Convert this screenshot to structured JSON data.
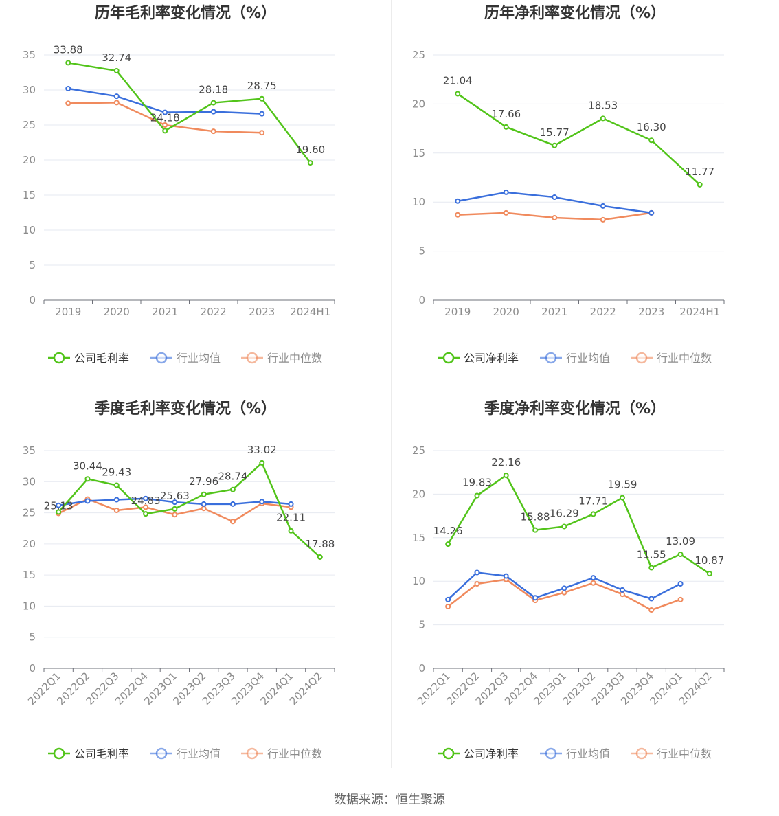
{
  "source": "数据来源：恒生聚源",
  "chart_data": [
    {
      "type": "line",
      "title": "历年毛利率变化情况（%）",
      "categories": [
        "2019",
        "2020",
        "2021",
        "2022",
        "2023",
        "2024H1"
      ],
      "ylim": [
        0,
        35
      ],
      "yticks": [
        0,
        5,
        10,
        15,
        20,
        25,
        30,
        35
      ],
      "rotate_x_labels": false,
      "grid": true,
      "legend_position": "bottom-center",
      "series": [
        {
          "name": "公司毛利率",
          "color": "#52c41a",
          "labels": true,
          "values": [
            33.88,
            32.74,
            24.18,
            28.18,
            28.75,
            19.6
          ],
          "value_labels": [
            "33.88",
            "32.74",
            "24.18",
            "28.18",
            "28.75",
            "19.60"
          ]
        },
        {
          "name": "行业均值",
          "color": "#3a6fdc",
          "labels": false,
          "values": [
            30.2,
            29.1,
            26.8,
            26.9,
            26.6,
            null
          ]
        },
        {
          "name": "行业中位数",
          "color": "#f08a5d",
          "labels": false,
          "values": [
            28.1,
            28.2,
            25.0,
            24.1,
            23.9,
            null
          ]
        }
      ]
    },
    {
      "type": "line",
      "title": "历年净利率变化情况（%）",
      "categories": [
        "2019",
        "2020",
        "2021",
        "2022",
        "2023",
        "2024H1"
      ],
      "ylim": [
        0,
        25
      ],
      "yticks": [
        0,
        5,
        10,
        15,
        20,
        25
      ],
      "rotate_x_labels": false,
      "grid": true,
      "legend_position": "bottom-center",
      "series": [
        {
          "name": "公司净利率",
          "color": "#52c41a",
          "labels": true,
          "values": [
            21.04,
            17.66,
            15.77,
            18.53,
            16.3,
            11.77
          ],
          "value_labels": [
            "21.04",
            "17.66",
            "15.77",
            "18.53",
            "16.30",
            "11.77"
          ]
        },
        {
          "name": "行业均值",
          "color": "#3a6fdc",
          "labels": false,
          "values": [
            10.1,
            11.0,
            10.5,
            9.6,
            8.9,
            null
          ]
        },
        {
          "name": "行业中位数",
          "color": "#f08a5d",
          "labels": false,
          "values": [
            8.7,
            8.9,
            8.4,
            8.2,
            8.9,
            null
          ]
        }
      ]
    },
    {
      "type": "line",
      "title": "季度毛利率变化情况（%）",
      "categories": [
        "2022Q1",
        "2022Q2",
        "2022Q3",
        "2022Q4",
        "2023Q1",
        "2023Q2",
        "2023Q3",
        "2023Q4",
        "2024Q1",
        "2024Q2"
      ],
      "ylim": [
        0,
        35
      ],
      "yticks": [
        0,
        5,
        10,
        15,
        20,
        25,
        30,
        35
      ],
      "rotate_x_labels": true,
      "grid": true,
      "legend_position": "bottom-center",
      "series": [
        {
          "name": "公司毛利率",
          "color": "#52c41a",
          "labels": true,
          "values": [
            25.13,
            30.44,
            29.43,
            24.83,
            25.63,
            27.96,
            28.74,
            33.02,
            22.11,
            17.88
          ],
          "value_labels": [
            "25.13",
            "30.44",
            "29.43",
            "24.83",
            "25.63",
            "27.96",
            "28.74",
            "33.02",
            "22.11",
            "17.88"
          ]
        },
        {
          "name": "行业均值",
          "color": "#3a6fdc",
          "labels": false,
          "values": [
            26.2,
            26.9,
            27.1,
            27.3,
            26.7,
            26.4,
            26.4,
            26.8,
            26.4,
            null
          ]
        },
        {
          "name": "行业中位数",
          "color": "#f08a5d",
          "labels": false,
          "values": [
            24.9,
            27.2,
            25.4,
            25.9,
            24.7,
            25.7,
            23.6,
            26.5,
            25.9,
            null
          ]
        }
      ]
    },
    {
      "type": "line",
      "title": "季度净利率变化情况（%）",
      "categories": [
        "2022Q1",
        "2022Q2",
        "2022Q3",
        "2022Q4",
        "2023Q1",
        "2023Q2",
        "2023Q3",
        "2023Q4",
        "2024Q1",
        "2024Q2"
      ],
      "ylim": [
        0,
        25
      ],
      "yticks": [
        0,
        5,
        10,
        15,
        20,
        25
      ],
      "rotate_x_labels": true,
      "grid": true,
      "legend_position": "bottom-center",
      "series": [
        {
          "name": "公司净利率",
          "color": "#52c41a",
          "labels": true,
          "values": [
            14.26,
            19.83,
            22.16,
            15.88,
            16.29,
            17.71,
            19.59,
            11.55,
            13.09,
            10.87
          ],
          "value_labels": [
            "14.26",
            "19.83",
            "22.16",
            "15.88",
            "16.29",
            "17.71",
            "19.59",
            "11.55",
            "13.09",
            "10.87"
          ]
        },
        {
          "name": "行业均值",
          "color": "#3a6fdc",
          "labels": false,
          "values": [
            7.9,
            11.0,
            10.6,
            8.1,
            9.2,
            10.4,
            9.0,
            8.0,
            9.7,
            null
          ]
        },
        {
          "name": "行业中位数",
          "color": "#f08a5d",
          "labels": false,
          "values": [
            7.1,
            9.7,
            10.2,
            7.8,
            8.7,
            9.8,
            8.5,
            6.7,
            7.9,
            null
          ]
        }
      ]
    }
  ]
}
